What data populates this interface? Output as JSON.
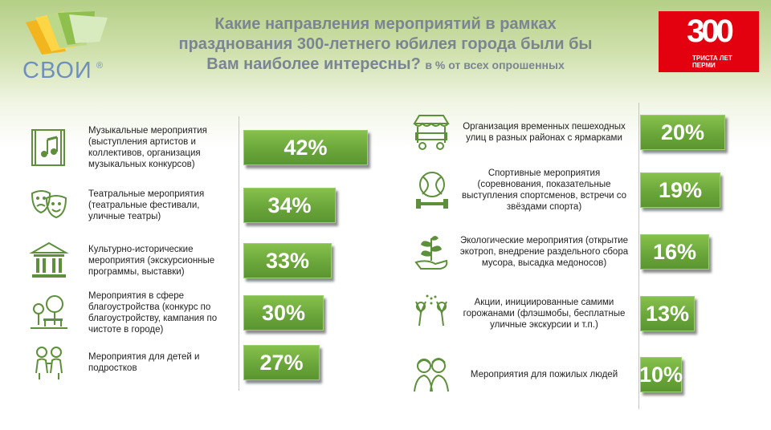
{
  "brand": {
    "name": "СВОИ",
    "reg": "®"
  },
  "title": {
    "main": "Какие направления мероприятий в рамках празднования 300-летнего юбилея города были бы Вам наиболее интересны?",
    "sub": "в % от всех опрошенных"
  },
  "badge": {
    "number": "300",
    "line1": "ТРИСТА ЛЕТ",
    "line2": "ПЕРМИ"
  },
  "colors": {
    "bar": "#6ba63b",
    "icon": "#5e8f3a",
    "badge": "#e3000f",
    "title": "#7b8591"
  },
  "chart_data": {
    "type": "bar",
    "orientation": "horizontal",
    "unit": "%",
    "left": [
      {
        "category": "Музыкальные мероприятия (выступления артистов и коллективов, организация музыкальных конкурсов)",
        "value": 42,
        "label": "42%",
        "icon": "music-icon"
      },
      {
        "category": "Театральные мероприятия (театральные фестивали, уличные театры)",
        "value": 34,
        "label": "34%",
        "icon": "theater-masks-icon"
      },
      {
        "category": "Культурно-исторические мероприятия (экскурсионные программы, выставки)",
        "value": 33,
        "label": "33%",
        "icon": "museum-icon"
      },
      {
        "category": "Мероприятия в сфере благоустройства (конкурс по благоустройству, кампания по чистоте в городе)",
        "value": 30,
        "label": "30%",
        "icon": "park-icon"
      },
      {
        "category": "Мероприятия для детей и подростков",
        "value": 27,
        "label": "27%",
        "icon": "children-icon"
      }
    ],
    "right": [
      {
        "category": "Организация временных пешеходных улиц в разных районах с ярмарками",
        "value": 20,
        "label": "20%",
        "icon": "market-stall-icon"
      },
      {
        "category": "Спортивные мероприятия (соревнования, показательные выступления спортсменов, встречи со звёздами спорта)",
        "value": 19,
        "label": "19%",
        "icon": "sports-icon"
      },
      {
        "category": "Экологические мероприятия (открытие экотроп, внедрение раздельного сбора мусора, высадка медоносов)",
        "value": 16,
        "label": "16%",
        "icon": "eco-plant-icon"
      },
      {
        "category": "Акции, инициированные самими горожанами (флэшмобы, бесплатные уличные экскурсии и т.п.)",
        "value": 13,
        "label": "13%",
        "icon": "celebration-icon"
      },
      {
        "category": "Мероприятия для пожилых людей",
        "value": 10,
        "label": "10%",
        "icon": "elderly-icon"
      }
    ]
  }
}
